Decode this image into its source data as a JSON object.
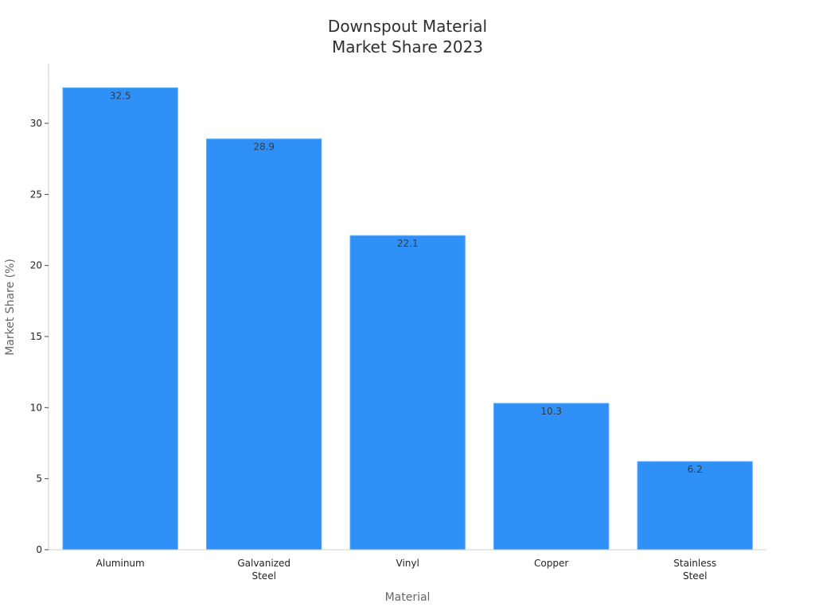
{
  "chart_data": {
    "type": "bar",
    "title_lines": [
      "Downspout Material",
      "Market Share 2023"
    ],
    "xlabel": "Material",
    "ylabel": "Market Share (%)",
    "categories": [
      [
        "Aluminum"
      ],
      [
        "Galvanized",
        "Steel"
      ],
      [
        "Vinyl"
      ],
      [
        "Copper"
      ],
      [
        "Stainless",
        "Steel"
      ]
    ],
    "values": [
      32.5,
      28.9,
      22.1,
      10.3,
      6.2
    ],
    "value_labels": [
      "32.5",
      "28.9",
      "22.1",
      "10.3",
      "6.2"
    ],
    "yticks": [
      0,
      5,
      10,
      15,
      20,
      25,
      30
    ],
    "ylim": [
      0,
      34.2
    ],
    "grid": false,
    "legend": "none",
    "colors": {
      "bar": "#2f91f7",
      "bar_edge": "#5aaaf9"
    }
  }
}
